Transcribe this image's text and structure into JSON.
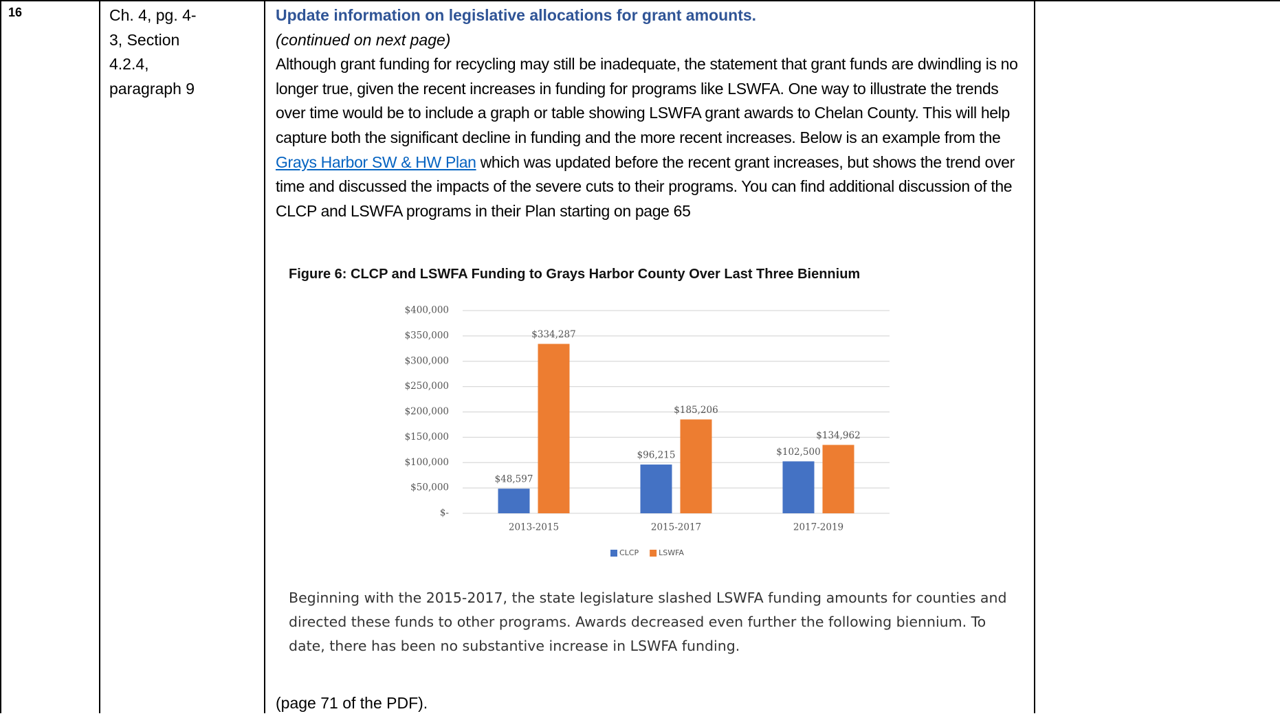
{
  "row": {
    "number": "16",
    "location": [
      "Ch. 4, pg. 4-",
      "3, Section",
      "4.2.4,",
      "paragraph 9"
    ],
    "heading": "Update information on legislative allocations for grant amounts.",
    "continued": "(continued on next page)",
    "body": {
      "before": "Although grant funding for recycling may still be inadequate, the statement that grant funds are dwindling is no longer true, given the recent increases in funding for programs like LSWFA.  One way to illustrate the trends over time would be to include a graph or table showing LSWFA grant awards to Chelan County.  This will help capture both the significant decline in funding and the more recent increases.   Below is an example from the ",
      "link": "Grays Harbor SW & HW Plan",
      "after": "  which was updated before the recent grant increases, but shows the trend over time and discussed the impacts of the severe cuts to their programs. You can find additional discussion of the CLCP and LSWFA programs in their Plan starting on page 65"
    },
    "figure": {
      "caption": "Figure 6: CLCP and LSWFA Funding to Grays Harbor County Over Last Three Biennium",
      "chart_data": {
        "type": "bar",
        "categories": [
          "2013-2015",
          "2015-2017",
          "2017-2019"
        ],
        "series": [
          {
            "name": "CLCP",
            "color": "#4472c4",
            "values": [
              48597,
              96215,
              102500
            ],
            "value_labels": [
              "$48,597",
              "$96,215",
              "$102,500"
            ]
          },
          {
            "name": "LSWFA",
            "color": "#ed7d31",
            "values": [
              334287,
              185206,
              134962
            ],
            "value_labels": [
              "$334,287",
              "$185,206",
              "$134,962"
            ]
          }
        ],
        "ylim": [
          0,
          400000
        ],
        "yticks": [
          {
            "value": 0,
            "label": "$-"
          },
          {
            "value": 50000,
            "label": "$50,000"
          },
          {
            "value": 100000,
            "label": "$100,000"
          },
          {
            "value": 150000,
            "label": "$150,000"
          },
          {
            "value": 200000,
            "label": "$200,000"
          },
          {
            "value": 250000,
            "label": "$250,000"
          },
          {
            "value": 300000,
            "label": "$300,000"
          },
          {
            "value": 350000,
            "label": "$350,000"
          },
          {
            "value": 400000,
            "label": "$400,000"
          }
        ],
        "grid": true,
        "legend": "bottom"
      },
      "quote": "Beginning with the 2015-2017, the state legislature slashed LSWFA funding amounts for counties and directed these funds to other programs.  Awards decreased even further the following biennium.  To date, there has been no substantive increase in LSWFA funding."
    },
    "note": "(page 71 of the PDF)."
  }
}
